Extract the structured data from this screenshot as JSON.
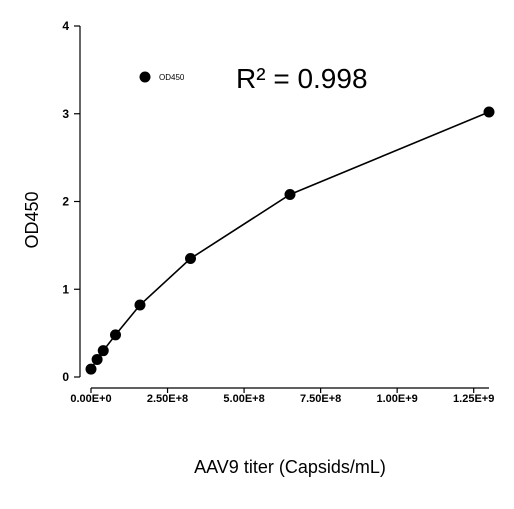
{
  "chart_data": {
    "type": "line",
    "xlabel": "AAV9 titer (Capsids/mL)",
    "ylabel": "OD450",
    "xlim": [
      0,
      1300000000
    ],
    "ylim": [
      0,
      4
    ],
    "x_ticks": [
      0,
      250000000,
      500000000,
      750000000,
      1000000000,
      1250000000
    ],
    "x_tick_labels": [
      "0.00E+0",
      "2.50E+8",
      "5.00E+8",
      "7.50E+8",
      "1.00E+9",
      "1.25E+9"
    ],
    "y_ticks": [
      0,
      1,
      2,
      3,
      4
    ],
    "y_tick_labels": [
      "0",
      "1",
      "2",
      "3",
      "4"
    ],
    "legend": {
      "position": "top-left",
      "entries": [
        "OD450"
      ]
    },
    "annotation": "R² = 0.998",
    "grid": false,
    "series": [
      {
        "name": "OD450",
        "marker": "circle",
        "color": "#000000",
        "x": [
          0,
          20000000,
          40000000,
          80000000,
          160000000,
          325000000,
          650000000,
          1300000000
        ],
        "y": [
          0.09,
          0.2,
          0.3,
          0.48,
          0.82,
          1.35,
          2.08,
          3.02
        ]
      }
    ]
  }
}
